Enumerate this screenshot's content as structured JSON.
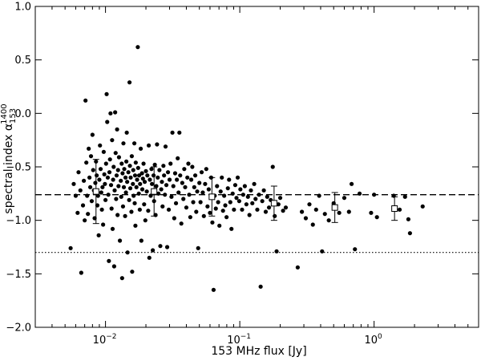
{
  "chart_data": {
    "type": "scatter",
    "xscale": "log",
    "xlim": [
      0.003,
      6
    ],
    "ylim": [
      -2.0,
      1.0
    ],
    "xlabel": "153 MHz flux [Jy]",
    "ylabel_main": "spectral index α",
    "ylabel_sup": "1400",
    "ylabel_sub": "153",
    "grid": false,
    "x_ticks": [
      {
        "value": 0.01,
        "base": "10",
        "exp": "−2"
      },
      {
        "value": 0.1,
        "base": "10",
        "exp": "−1"
      },
      {
        "value": 1,
        "base": "10",
        "exp": "0"
      }
    ],
    "y_ticks": [
      {
        "value": 1.0,
        "label": "1.0"
      },
      {
        "value": 0.5,
        "label": "0.5"
      },
      {
        "value": 0.0,
        "label": "0.0"
      },
      {
        "value": -0.5,
        "label": "−0.5"
      },
      {
        "value": -1.0,
        "label": "−1.0"
      },
      {
        "value": -1.5,
        "label": "−1.5"
      },
      {
        "value": -2.0,
        "label": "−2.0"
      }
    ],
    "reference_lines": [
      {
        "style": "dashed",
        "y": -0.76
      },
      {
        "style": "dotted",
        "y": -1.3
      }
    ],
    "binned_means": [
      {
        "x": 0.0085,
        "y": -0.73,
        "err": 0.3
      },
      {
        "x": 0.023,
        "y": -0.73,
        "err": 0.23
      },
      {
        "x": 0.062,
        "y": -0.78,
        "err": 0.18
      },
      {
        "x": 0.18,
        "y": -0.84,
        "err": 0.16
      },
      {
        "x": 0.51,
        "y": -0.88,
        "err": 0.14
      },
      {
        "x": 1.42,
        "y": -0.89,
        "err": 0.11
      }
    ],
    "points": [
      [
        0.0055,
        -1.26
      ],
      [
        0.0058,
        -0.66
      ],
      [
        0.006,
        -0.77
      ],
      [
        0.0062,
        -0.93
      ],
      [
        0.0063,
        -0.55
      ],
      [
        0.0065,
        -0.72
      ],
      [
        0.0066,
        -1.49
      ],
      [
        0.0068,
        -0.86
      ],
      [
        0.0069,
        -0.63
      ],
      [
        0.007,
        -1.0
      ],
      [
        0.0071,
        0.12
      ],
      [
        0.0072,
        -0.46
      ],
      [
        0.0073,
        -0.77
      ],
      [
        0.0074,
        -0.94
      ],
      [
        0.0075,
        -0.33
      ],
      [
        0.0076,
        -0.6
      ],
      [
        0.0077,
        -0.69
      ],
      [
        0.0078,
        -0.4
      ],
      [
        0.0079,
        -0.82
      ],
      [
        0.008,
        -0.2
      ],
      [
        0.0081,
        -0.53
      ],
      [
        0.0082,
        -0.72
      ],
      [
        0.0083,
        -0.98
      ],
      [
        0.0084,
        -0.65
      ],
      [
        0.0085,
        -0.45
      ],
      [
        0.0086,
        -0.58
      ],
      [
        0.0087,
        -0.86
      ],
      [
        0.0088,
        -0.77
      ],
      [
        0.0089,
        -1.14
      ],
      [
        0.009,
        -0.62
      ],
      [
        0.0091,
        -0.3
      ],
      [
        0.0092,
        -0.52
      ],
      [
        0.0093,
        -0.74
      ],
      [
        0.0094,
        -0.9
      ],
      [
        0.0095,
        -0.69
      ],
      [
        0.0096,
        -1.04
      ],
      [
        0.0097,
        -0.36
      ],
      [
        0.0098,
        -0.57
      ],
      [
        0.0099,
        -0.66
      ],
      [
        0.01,
        -0.81
      ],
      [
        0.0101,
        -0.47
      ],
      [
        0.0102,
        0.18
      ],
      [
        0.0103,
        -0.08
      ],
      [
        0.0104,
        -0.6
      ],
      [
        0.0105,
        -0.76
      ],
      [
        0.0106,
        -1.38
      ],
      [
        0.0107,
        -0.55
      ],
      [
        0.0108,
        -0.43
      ],
      [
        0.0109,
        0.0
      ],
      [
        0.011,
        -0.67
      ],
      [
        0.0111,
        -0.89
      ],
      [
        0.0112,
        -0.25
      ],
      [
        0.0113,
        -1.08
      ],
      [
        0.0114,
        -0.62
      ],
      [
        0.0115,
        -0.5
      ],
      [
        0.0116,
        -1.43
      ],
      [
        0.0117,
        -0.72
      ],
      [
        0.0118,
        0.01
      ],
      [
        0.0119,
        -0.37
      ],
      [
        0.012,
        -0.8
      ],
      [
        0.0121,
        -0.58
      ],
      [
        0.0122,
        -0.15
      ],
      [
        0.0123,
        -0.95
      ],
      [
        0.0124,
        -0.53
      ],
      [
        0.0125,
        -0.68
      ],
      [
        0.0126,
        -0.41
      ],
      [
        0.0128,
        -1.19
      ],
      [
        0.013,
        -0.63
      ],
      [
        0.0131,
        -0.78
      ],
      [
        0.0132,
        -0.47
      ],
      [
        0.0133,
        -1.54
      ],
      [
        0.0134,
        -0.56
      ],
      [
        0.0135,
        -0.87
      ],
      [
        0.0136,
        -0.28
      ],
      [
        0.0137,
        -0.69
      ],
      [
        0.0138,
        -0.52
      ],
      [
        0.014,
        -0.96
      ],
      [
        0.0141,
        -0.6
      ],
      [
        0.0142,
        -0.74
      ],
      [
        0.0143,
        -0.45
      ],
      [
        0.0144,
        -0.18
      ],
      [
        0.0145,
        -0.64
      ],
      [
        0.0146,
        -1.3
      ],
      [
        0.0148,
        -0.55
      ],
      [
        0.015,
        -0.81
      ],
      [
        0.0151,
        0.29
      ],
      [
        0.0152,
        -0.49
      ],
      [
        0.0153,
        -0.7
      ],
      [
        0.0154,
        -0.6
      ],
      [
        0.0156,
        -0.92
      ],
      [
        0.0157,
        -0.4
      ],
      [
        0.0158,
        -1.48
      ],
      [
        0.016,
        -0.66
      ],
      [
        0.0161,
        -0.53
      ],
      [
        0.0162,
        -0.77
      ],
      [
        0.0164,
        -0.28
      ],
      [
        0.0165,
        -0.84
      ],
      [
        0.0166,
        -0.58
      ],
      [
        0.0167,
        -1.05
      ],
      [
        0.0168,
        -0.46
      ],
      [
        0.017,
        -0.69
      ],
      [
        0.0172,
        -0.62
      ],
      [
        0.0174,
        0.62
      ],
      [
        0.0175,
        -0.51
      ],
      [
        0.0177,
        -0.75
      ],
      [
        0.0178,
        -0.58
      ],
      [
        0.018,
        -0.9
      ],
      [
        0.0181,
        -0.66
      ],
      [
        0.0183,
        -0.33
      ],
      [
        0.0185,
        -1.19
      ],
      [
        0.0187,
        -0.56
      ],
      [
        0.0188,
        -0.71
      ],
      [
        0.019,
        -0.61
      ],
      [
        0.0192,
        -0.47
      ],
      [
        0.0194,
        -0.85
      ],
      [
        0.0196,
        -0.64
      ],
      [
        0.0198,
        -1.0
      ],
      [
        0.02,
        -0.54
      ],
      [
        0.0203,
        -0.73
      ],
      [
        0.0205,
        -0.58
      ],
      [
        0.0208,
        -0.91
      ],
      [
        0.021,
        -0.3
      ],
      [
        0.0212,
        -1.35
      ],
      [
        0.0214,
        -0.62
      ],
      [
        0.0217,
        -0.77
      ],
      [
        0.022,
        -0.52
      ],
      [
        0.0222,
        -0.66
      ],
      [
        0.0225,
        -1.28
      ],
      [
        0.0228,
        -0.58
      ],
      [
        0.023,
        -0.82
      ],
      [
        0.0233,
        -0.48
      ],
      [
        0.0236,
        -0.95
      ],
      [
        0.0239,
        -0.68
      ],
      [
        0.0242,
        -0.29
      ],
      [
        0.0245,
        -0.6
      ],
      [
        0.0248,
        -0.75
      ],
      [
        0.0252,
        -0.53
      ],
      [
        0.0256,
        -1.24
      ],
      [
        0.026,
        -0.71
      ],
      [
        0.0263,
        -0.64
      ],
      [
        0.0266,
        -0.87
      ],
      [
        0.027,
        -0.49
      ],
      [
        0.0273,
        -0.58
      ],
      [
        0.0277,
        -0.76
      ],
      [
        0.028,
        -0.31
      ],
      [
        0.0284,
        -0.67
      ],
      [
        0.0288,
        -1.25
      ],
      [
        0.0292,
        -0.55
      ],
      [
        0.0296,
        -0.9
      ],
      [
        0.03,
        -0.62
      ],
      [
        0.0305,
        -0.47
      ],
      [
        0.031,
        -0.78
      ],
      [
        0.0315,
        -0.18
      ],
      [
        0.032,
        -0.68
      ],
      [
        0.0325,
        -0.98
      ],
      [
        0.033,
        -0.56
      ],
      [
        0.0335,
        -0.84
      ],
      [
        0.034,
        -0.62
      ],
      [
        0.0345,
        -0.42
      ],
      [
        0.035,
        -0.74
      ],
      [
        0.0355,
        -0.18
      ],
      [
        0.036,
        -0.58
      ],
      [
        0.0367,
        -1.03
      ],
      [
        0.0373,
        -0.65
      ],
      [
        0.038,
        -0.8
      ],
      [
        0.0386,
        -0.52
      ],
      [
        0.0392,
        -0.69
      ],
      [
        0.04,
        -0.88
      ],
      [
        0.0407,
        -0.6
      ],
      [
        0.0414,
        -0.47
      ],
      [
        0.042,
        -0.76
      ],
      [
        0.0428,
        -0.97
      ],
      [
        0.0435,
        -0.62
      ],
      [
        0.0443,
        -0.5
      ],
      [
        0.045,
        -0.83
      ],
      [
        0.0458,
        -0.69
      ],
      [
        0.0466,
        -0.58
      ],
      [
        0.0474,
        -0.92
      ],
      [
        0.0482,
        -0.73
      ],
      [
        0.049,
        -1.26
      ],
      [
        0.05,
        -0.65
      ],
      [
        0.051,
        -0.83
      ],
      [
        0.052,
        -0.55
      ],
      [
        0.053,
        -0.74
      ],
      [
        0.054,
        -0.96
      ],
      [
        0.0552,
        -0.66
      ],
      [
        0.0563,
        -0.52
      ],
      [
        0.0575,
        -0.87
      ],
      [
        0.0587,
        -0.71
      ],
      [
        0.06,
        -0.93
      ],
      [
        0.0612,
        -0.6
      ],
      [
        0.0625,
        -1.02
      ],
      [
        0.0638,
        -1.65
      ],
      [
        0.065,
        -0.77
      ],
      [
        0.0663,
        -0.89
      ],
      [
        0.0677,
        -0.68
      ],
      [
        0.069,
        -0.83
      ],
      [
        0.0705,
        -1.05
      ],
      [
        0.072,
        -0.73
      ],
      [
        0.0735,
        -0.6
      ],
      [
        0.075,
        -0.91
      ],
      [
        0.0765,
        -0.77
      ],
      [
        0.078,
        -0.86
      ],
      [
        0.0797,
        -0.97
      ],
      [
        0.0815,
        -0.7
      ],
      [
        0.0832,
        -0.62
      ],
      [
        0.085,
        -0.83
      ],
      [
        0.0867,
        -1.08
      ],
      [
        0.0885,
        -0.75
      ],
      [
        0.0905,
        -0.9
      ],
      [
        0.0925,
        -0.67
      ],
      [
        0.0945,
        -0.79
      ],
      [
        0.0965,
        -0.6
      ],
      [
        0.099,
        -0.82
      ],
      [
        0.101,
        -0.71
      ],
      [
        0.104,
        -0.9
      ],
      [
        0.106,
        -0.76
      ],
      [
        0.109,
        -0.68
      ],
      [
        0.112,
        -0.85
      ],
      [
        0.115,
        -0.78
      ],
      [
        0.118,
        -0.95
      ],
      [
        0.121,
        -0.72
      ],
      [
        0.124,
        -0.84
      ],
      [
        0.128,
        -0.66
      ],
      [
        0.131,
        -0.8
      ],
      [
        0.135,
        -0.9
      ],
      [
        0.139,
        -0.76
      ],
      [
        0.143,
        -1.62
      ],
      [
        0.147,
        -0.82
      ],
      [
        0.151,
        -0.72
      ],
      [
        0.156,
        -0.92
      ],
      [
        0.16,
        -0.78
      ],
      [
        0.165,
        -0.88
      ],
      [
        0.17,
        -0.81
      ],
      [
        0.176,
        -0.5
      ],
      [
        0.182,
        -0.96
      ],
      [
        0.188,
        -1.29
      ],
      [
        0.194,
        -0.85
      ],
      [
        0.2,
        -0.79
      ],
      [
        0.21,
        -0.91
      ],
      [
        0.22,
        -0.88
      ],
      [
        0.27,
        -1.44
      ],
      [
        0.29,
        -0.92
      ],
      [
        0.31,
        -0.98
      ],
      [
        0.33,
        -0.85
      ],
      [
        0.35,
        -1.04
      ],
      [
        0.37,
        -0.9
      ],
      [
        0.39,
        -0.77
      ],
      [
        0.41,
        -1.29
      ],
      [
        0.43,
        -0.94
      ],
      [
        0.46,
        -1.0
      ],
      [
        0.5,
        -0.84
      ],
      [
        0.55,
        -0.93
      ],
      [
        0.6,
        -0.79
      ],
      [
        0.65,
        -0.92
      ],
      [
        0.68,
        -0.66
      ],
      [
        0.72,
        -1.27
      ],
      [
        0.78,
        -0.75
      ],
      [
        0.95,
        -0.93
      ],
      [
        1.0,
        -0.76
      ],
      [
        1.05,
        -0.97
      ],
      [
        1.4,
        -0.77
      ],
      [
        1.55,
        -0.9
      ],
      [
        1.7,
        -0.78
      ],
      [
        1.8,
        -0.99
      ],
      [
        1.85,
        -1.12
      ],
      [
        2.3,
        -0.87
      ]
    ]
  }
}
